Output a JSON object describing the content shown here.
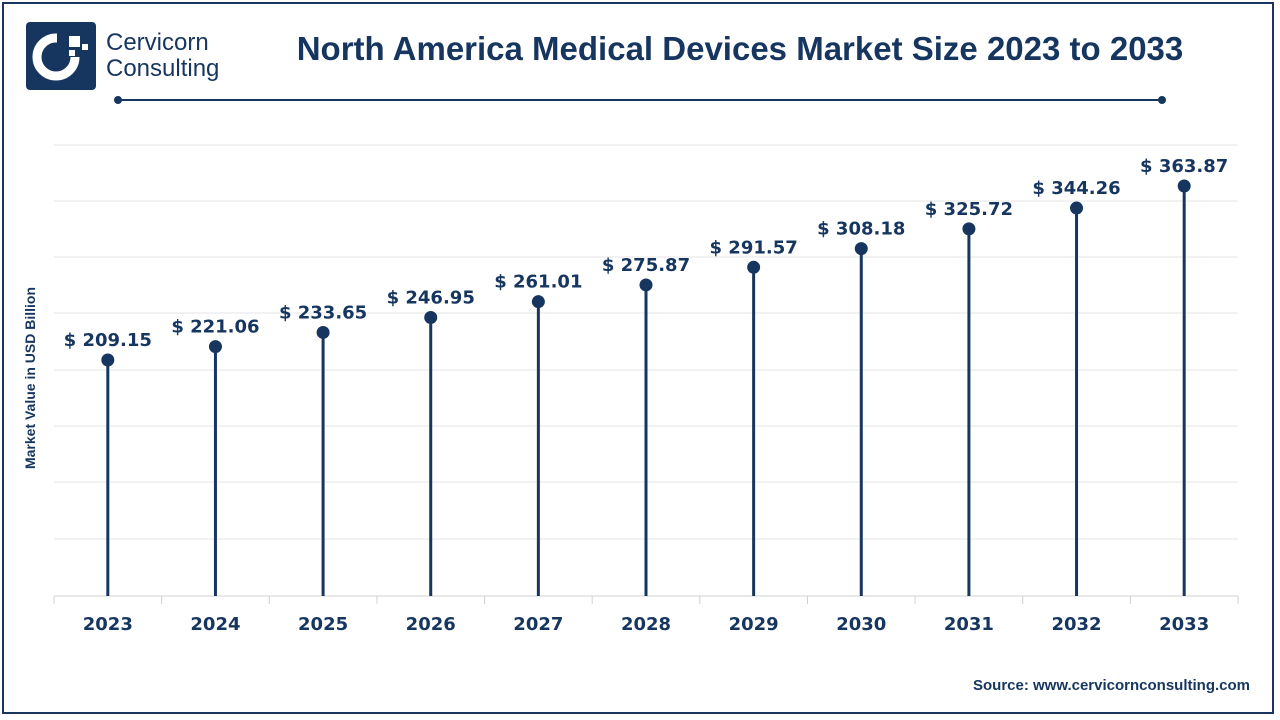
{
  "brand": {
    "line1": "Cervicorn",
    "line2": "Consulting"
  },
  "source": "Source: www.cervicornconsulting.com",
  "colors": {
    "primary": "#16365f",
    "grid": "#e6e6e6"
  },
  "chart_data": {
    "type": "lollipop",
    "title": "North America Medical Devices Market Size 2023 to 2033",
    "ylabel": "Market Value in USD Billion",
    "xlabel": "",
    "categories": [
      "2023",
      "2024",
      "2025",
      "2026",
      "2027",
      "2028",
      "2029",
      "2030",
      "2031",
      "2032",
      "2033"
    ],
    "values": [
      209.15,
      221.06,
      233.65,
      246.95,
      261.01,
      275.87,
      291.57,
      308.18,
      325.72,
      344.26,
      363.87
    ],
    "value_labels": [
      "$ 209.15",
      "$ 221.06",
      "$ 233.65",
      "$ 246.95",
      "$ 261.01",
      "$ 275.87",
      "$ 291.57",
      "$ 308.18",
      "$ 325.72",
      "$ 344.26",
      "$ 363.87"
    ],
    "grid": true,
    "legend": "none"
  }
}
